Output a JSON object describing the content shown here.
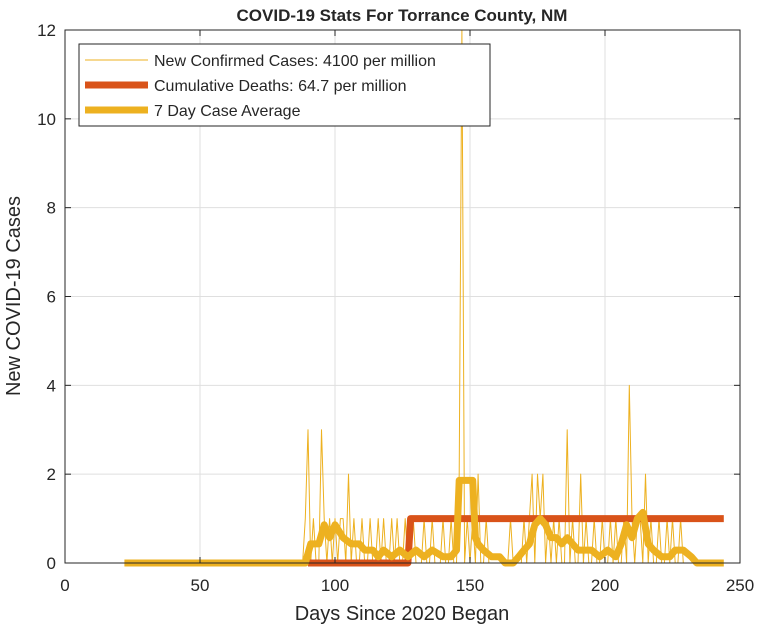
{
  "chart_data": {
    "type": "line",
    "title": "COVID-19 Stats For Torrance County, NM",
    "xlabel": "Days Since 2020 Began",
    "ylabel": "New COVID-19 Cases",
    "xlim": [
      0,
      250
    ],
    "ylim": [
      0,
      12
    ],
    "xticks": [
      0,
      50,
      100,
      150,
      200,
      250
    ],
    "yticks": [
      0,
      2,
      4,
      6,
      8,
      10,
      12
    ],
    "grid": true,
    "legend_position": "top-left",
    "series": [
      {
        "name": "New Confirmed Cases: 4100 per million",
        "color": "#EDB120",
        "style": "thin",
        "points": [
          [
            22,
            0
          ],
          [
            88,
            0
          ],
          [
            89,
            1
          ],
          [
            90,
            3
          ],
          [
            91,
            0
          ],
          [
            92,
            1
          ],
          [
            93,
            0
          ],
          [
            94,
            0
          ],
          [
            95,
            3
          ],
          [
            96,
            1
          ],
          [
            97,
            0
          ],
          [
            98,
            1
          ],
          [
            99,
            0
          ],
          [
            100,
            1
          ],
          [
            101,
            0
          ],
          [
            102,
            1
          ],
          [
            103,
            1
          ],
          [
            104,
            0
          ],
          [
            105,
            2
          ],
          [
            106,
            0
          ],
          [
            107,
            1
          ],
          [
            108,
            0
          ],
          [
            109,
            0
          ],
          [
            110,
            1
          ],
          [
            111,
            0
          ],
          [
            112,
            0
          ],
          [
            113,
            1
          ],
          [
            114,
            0
          ],
          [
            115,
            0
          ],
          [
            116,
            1
          ],
          [
            117,
            0
          ],
          [
            118,
            1
          ],
          [
            119,
            0
          ],
          [
            120,
            0
          ],
          [
            121,
            1
          ],
          [
            122,
            0
          ],
          [
            123,
            1
          ],
          [
            124,
            0
          ],
          [
            125,
            0
          ],
          [
            126,
            1
          ],
          [
            127,
            0
          ],
          [
            128,
            0
          ],
          [
            129,
            1
          ],
          [
            130,
            0
          ],
          [
            131,
            0
          ],
          [
            132,
            0
          ],
          [
            133,
            1
          ],
          [
            134,
            0
          ],
          [
            135,
            0
          ],
          [
            136,
            1
          ],
          [
            137,
            0
          ],
          [
            138,
            0
          ],
          [
            139,
            0
          ],
          [
            140,
            1
          ],
          [
            141,
            0
          ],
          [
            142,
            0
          ],
          [
            143,
            1
          ],
          [
            144,
            0
          ],
          [
            145,
            0
          ],
          [
            146,
            2
          ],
          [
            147,
            12
          ],
          [
            148,
            0
          ],
          [
            149,
            1
          ],
          [
            150,
            0
          ],
          [
            151,
            1
          ],
          [
            152,
            0
          ],
          [
            153,
            2
          ],
          [
            154,
            0
          ],
          [
            155,
            0
          ],
          [
            156,
            1
          ],
          [
            157,
            0
          ],
          [
            158,
            0
          ],
          [
            159,
            0
          ],
          [
            160,
            0
          ],
          [
            161,
            0
          ],
          [
            162,
            0
          ],
          [
            163,
            0
          ],
          [
            164,
            0
          ],
          [
            165,
            1
          ],
          [
            166,
            0
          ],
          [
            167,
            0
          ],
          [
            168,
            0
          ],
          [
            169,
            0
          ],
          [
            170,
            1
          ],
          [
            171,
            0
          ],
          [
            172,
            1
          ],
          [
            173,
            2
          ],
          [
            174,
            0
          ],
          [
            175,
            2
          ],
          [
            176,
            1
          ],
          [
            177,
            2
          ],
          [
            178,
            0
          ],
          [
            179,
            1
          ],
          [
            180,
            0
          ],
          [
            181,
            1
          ],
          [
            182,
            0
          ],
          [
            183,
            1
          ],
          [
            184,
            0
          ],
          [
            185,
            0
          ],
          [
            186,
            3
          ],
          [
            187,
            0
          ],
          [
            188,
            1
          ],
          [
            189,
            0
          ],
          [
            190,
            0
          ],
          [
            191,
            2
          ],
          [
            192,
            0
          ],
          [
            193,
            1
          ],
          [
            194,
            0
          ],
          [
            195,
            0
          ],
          [
            196,
            1
          ],
          [
            197,
            0
          ],
          [
            198,
            0
          ],
          [
            199,
            1
          ],
          [
            200,
            0
          ],
          [
            201,
            0
          ],
          [
            202,
            1
          ],
          [
            203,
            0
          ],
          [
            204,
            1
          ],
          [
            205,
            0
          ],
          [
            206,
            0
          ],
          [
            207,
            1
          ],
          [
            208,
            0
          ],
          [
            209,
            4
          ],
          [
            210,
            1
          ],
          [
            211,
            0
          ],
          [
            212,
            1
          ],
          [
            213,
            1
          ],
          [
            214,
            0
          ],
          [
            215,
            2
          ],
          [
            216,
            0
          ],
          [
            217,
            1
          ],
          [
            218,
            0
          ],
          [
            219,
            0
          ],
          [
            220,
            1
          ],
          [
            221,
            0
          ],
          [
            222,
            0
          ],
          [
            223,
            1
          ],
          [
            224,
            0
          ],
          [
            225,
            1
          ],
          [
            226,
            0
          ],
          [
            227,
            0
          ],
          [
            228,
            1
          ],
          [
            229,
            0
          ],
          [
            230,
            0
          ],
          [
            231,
            0
          ],
          [
            232,
            0
          ],
          [
            233,
            0
          ],
          [
            234,
            0
          ],
          [
            235,
            0
          ],
          [
            236,
            0
          ],
          [
            237,
            0
          ],
          [
            238,
            0
          ],
          [
            239,
            0
          ],
          [
            240,
            0
          ],
          [
            241,
            0
          ],
          [
            242,
            0
          ],
          [
            243,
            0
          ],
          [
            244,
            0
          ]
        ]
      },
      {
        "name": "Cumulative Deaths: 64.7 per million",
        "color": "#D95319",
        "style": "thick",
        "points": [
          [
            90,
            0
          ],
          [
            127,
            0
          ],
          [
            128,
            1
          ],
          [
            244,
            1
          ]
        ]
      },
      {
        "name": "7 Day Case Average",
        "color": "#EDB120",
        "style": "thick",
        "points": [
          [
            22,
            0
          ],
          [
            89,
            0
          ],
          [
            91,
            0.43
          ],
          [
            94,
            0.43
          ],
          [
            96,
            0.86
          ],
          [
            98,
            0.57
          ],
          [
            100,
            0.86
          ],
          [
            103,
            0.57
          ],
          [
            106,
            0.43
          ],
          [
            109,
            0.43
          ],
          [
            111,
            0.29
          ],
          [
            114,
            0.29
          ],
          [
            116,
            0.14
          ],
          [
            118,
            0.29
          ],
          [
            121,
            0.14
          ],
          [
            124,
            0.29
          ],
          [
            127,
            0.14
          ],
          [
            130,
            0.29
          ],
          [
            133,
            0.14
          ],
          [
            136,
            0.29
          ],
          [
            140,
            0.14
          ],
          [
            143,
            0.14
          ],
          [
            145,
            0.29
          ],
          [
            146,
            1.86
          ],
          [
            151,
            1.86
          ],
          [
            152,
            0.57
          ],
          [
            153,
            0.43
          ],
          [
            155,
            0.29
          ],
          [
            158,
            0.14
          ],
          [
            161,
            0.14
          ],
          [
            163,
            0
          ],
          [
            166,
            0
          ],
          [
            168,
            0.14
          ],
          [
            170,
            0.29
          ],
          [
            172,
            0.43
          ],
          [
            174,
            0.86
          ],
          [
            176,
            1.0
          ],
          [
            178,
            0.86
          ],
          [
            180,
            0.57
          ],
          [
            182,
            0.57
          ],
          [
            184,
            0.43
          ],
          [
            186,
            0.57
          ],
          [
            188,
            0.43
          ],
          [
            190,
            0.29
          ],
          [
            192,
            0.29
          ],
          [
            195,
            0.29
          ],
          [
            198,
            0.14
          ],
          [
            201,
            0.29
          ],
          [
            204,
            0.14
          ],
          [
            206,
            0.43
          ],
          [
            208,
            0.86
          ],
          [
            210,
            0.57
          ],
          [
            212,
            1.0
          ],
          [
            214,
            1.14
          ],
          [
            216,
            0.43
          ],
          [
            218,
            0.29
          ],
          [
            221,
            0.14
          ],
          [
            224,
            0.14
          ],
          [
            226,
            0.29
          ],
          [
            229,
            0.29
          ],
          [
            232,
            0.14
          ],
          [
            234,
            0
          ],
          [
            244,
            0
          ]
        ]
      }
    ]
  }
}
